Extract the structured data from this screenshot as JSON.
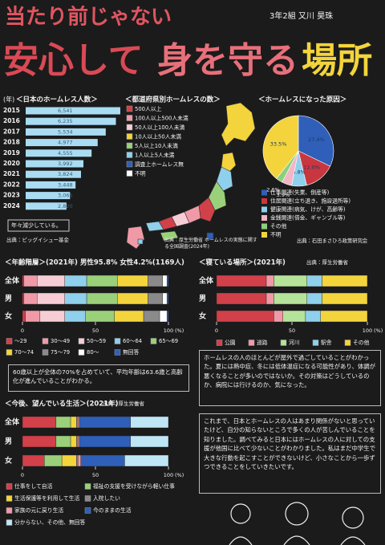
{
  "header": {
    "title_line1": "当たり前じゃない",
    "title_line2": [
      "安心して",
      "身を守る",
      "場所"
    ],
    "author": "3年2組 又川 昊珠"
  },
  "chart_data": [
    {
      "type": "bar",
      "title": "＜日本のホームレス人数＞",
      "ylabel": "(年)",
      "categories": [
        "2015",
        "2016",
        "2017",
        "2018",
        "2019",
        "2020",
        "2021",
        "2022",
        "2023",
        "2024"
      ],
      "values": [
        6541,
        6235,
        5534,
        4977,
        4555,
        3992,
        3824,
        3448,
        3065,
        2820
      ],
      "value_labels": [
        "6,541",
        "6,235",
        "5,534",
        "4,977",
        "4,555",
        "3,992",
        "3,824",
        "3,448",
        "3,065",
        "2,820"
      ],
      "color": "#a9dcf2",
      "annotation": "年々減少している。",
      "source": "出典：ビッグイシュー基金"
    },
    {
      "type": "pie",
      "title": "＜ホームレスになった原因＞",
      "categories": [
        "仕事関連(失業、倒産等)",
        "住居関連(立ち退き、施設退所等)",
        "健康関連(病気、けが、高齢等)",
        "金銭関連(借金、ギャンブル等)",
        "その他",
        "不明"
      ],
      "values": [
        27.4,
        12.0,
        5.8,
        3.9,
        2.6,
        33.5
      ],
      "value_labels": [
        "27.4%",
        "12.0%",
        "5.8%",
        "3.9%",
        "2.6%",
        "33.5%"
      ],
      "colors": [
        "#2f5fb8",
        "#c8373f",
        "#8fd0ec",
        "#f2b6c4",
        "#8ccf7e",
        "#f3d43c"
      ],
      "source": "出典：石田まさひろ政策研究会"
    },
    {
      "type": "stacked_bar",
      "title": "＜年齢階層＞(2021年) 男性95.8% 女性4.2%(1169人)",
      "categories": [
        "全体",
        "男",
        "女"
      ],
      "series": [
        {
          "name": "～29",
          "color": "#d2404a",
          "values": [
            1,
            1,
            2
          ]
        },
        {
          "name": "30～49",
          "color": "#f09aa8",
          "values": [
            9,
            9,
            10
          ]
        },
        {
          "name": "50～59",
          "color": "#f7cdd5",
          "values": [
            19,
            19,
            17
          ]
        },
        {
          "name": "60～64",
          "color": "#8fd0ec",
          "values": [
            15,
            15,
            14
          ]
        },
        {
          "name": "65～69",
          "color": "#9ad07a",
          "values": [
            21,
            21,
            20
          ]
        },
        {
          "name": "70～74",
          "color": "#f3d43c",
          "values": [
            21,
            21,
            20
          ]
        },
        {
          "name": "75～79",
          "color": "#8a8a8a",
          "values": [
            10,
            10,
            11
          ]
        },
        {
          "name": "80～",
          "color": "#ffffff",
          "values": [
            3,
            3,
            5
          ]
        },
        {
          "name": "無回答",
          "color": "#2f5fb8",
          "values": [
            1,
            1,
            1
          ]
        }
      ],
      "xlim": [
        0,
        100
      ],
      "xticks": [
        0,
        50,
        100
      ],
      "xlabel": "(%)",
      "note": "60歳以上が全体の70%を占めていて、平均年齢は63.6歳と高齢化が進んでいることがわかる。"
    },
    {
      "type": "stacked_bar",
      "title": "＜寝ている場所＞(2021年)",
      "source": "出典：厚生労働省",
      "categories": [
        "全体",
        "男",
        "女"
      ],
      "series": [
        {
          "name": "公園",
          "color": "#d2404a",
          "values": [
            33,
            33,
            38
          ]
        },
        {
          "name": "道路",
          "color": "#f09aa8",
          "values": [
            5,
            5,
            6
          ]
        },
        {
          "name": "河川",
          "color": "#b6e39a",
          "values": [
            22,
            22,
            15
          ]
        },
        {
          "name": "駅舎",
          "color": "#8fd0ec",
          "values": [
            10,
            10,
            10
          ]
        },
        {
          "name": "その他",
          "color": "#f3d43c",
          "values": [
            30,
            30,
            31
          ]
        }
      ],
      "xlim": [
        0,
        100
      ],
      "xticks": [
        0,
        50,
        100
      ],
      "xlabel": "(%)"
    },
    {
      "type": "stacked_bar",
      "title": "＜今後、望んでいる生活＞(2021年)",
      "source": "出典：厚生労働省",
      "categories": [
        "全体",
        "男",
        "女"
      ],
      "series": [
        {
          "name": "仕事をして自活",
          "color": "#d2404a",
          "values": [
            23,
            23,
            15
          ]
        },
        {
          "name": "福祉の支援を受けながら軽い仕事",
          "color": "#9ad07a",
          "values": [
            10,
            10,
            12
          ]
        },
        {
          "name": "生活保護等を利用して生活",
          "color": "#f3d43c",
          "values": [
            4,
            4,
            10
          ]
        },
        {
          "name": "入院したい",
          "color": "#8a8a8a",
          "values": [
            1,
            1,
            1
          ]
        },
        {
          "name": "家族の元に戻り生活",
          "color": "#f09aa8",
          "values": [
            1,
            1,
            2
          ]
        },
        {
          "name": "今のままの生活",
          "color": "#2f5fb8",
          "values": [
            35,
            35,
            30
          ]
        },
        {
          "name": "分からない、その他、無回答",
          "color": "#bfe6f5",
          "values": [
            26,
            26,
            30
          ]
        }
      ],
      "xlim": [
        0,
        100
      ],
      "xticks": [
        0,
        50,
        100
      ],
      "xlabel": "(%)"
    }
  ],
  "map": {
    "title": "＜都道府県別ホームレスの数＞",
    "legend": [
      {
        "label": "500人以上",
        "color": "#d2404a"
      },
      {
        "label": "100人以上500人未満",
        "color": "#f09aa8"
      },
      {
        "label": "50人以上100人未満",
        "color": "#f7cdd5"
      },
      {
        "label": "10人以上50人未満",
        "color": "#f3d43c"
      },
      {
        "label": "5人以上10人未満",
        "color": "#9ad07a"
      },
      {
        "label": "1人以上5人未満",
        "color": "#8fd0ec"
      },
      {
        "label": "調査上ホームレス無",
        "color": "#2f5fb8"
      },
      {
        "label": "不明",
        "color": "#ffffff"
      }
    ],
    "source": "出典：厚生労働省 ホームレスの実態に関する全国調査(2024年)"
  },
  "texts": {
    "observation": "ホームレスの人のほとんどが屋外で過ごしていることがわかった。夏には熱中症、冬には低体温症になる可能性があり、体調が悪くなることが多いのではないか。その対策はどうしているのか、病院には行けるのか、気になった。",
    "conclusion": "これまで、日本とホームレスの人はあまり関係がないと思っていたけど、自分の知らないところで多くの人が苦しんでいることを知りました。調べてみると日本にはホームレスの人に対しての支援が他国に比べて少ないことがわかりました。私はまだ中学生で大きな行動を起こすことができないけど、小さなことから一歩ずつできることをしていきたいです。"
  }
}
